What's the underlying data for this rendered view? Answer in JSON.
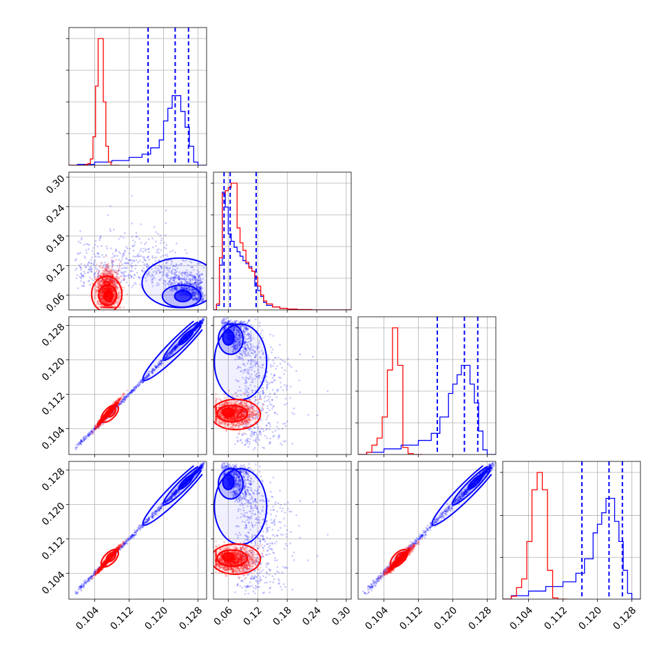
{
  "chart_data": {
    "type": "corner",
    "grid": true,
    "colors": {
      "red": "#ff0000",
      "blue": "#0000ff"
    },
    "parameters": [
      {
        "range": [
          0.098,
          0.13
        ],
        "ticks": [
          0.104,
          0.112,
          0.12,
          0.128
        ],
        "tick_labels": [
          "0.104",
          "0.112",
          "0.120",
          "0.128"
        ]
      },
      {
        "range": [
          0.03,
          0.31
        ],
        "ticks": [
          0.06,
          0.12,
          0.18,
          0.24,
          0.3
        ],
        "tick_labels": [
          "0.06",
          "0.12",
          "0.18",
          "0.24",
          "0.30"
        ]
      },
      {
        "range": [
          0.098,
          0.13
        ],
        "ticks": [
          0.104,
          0.112,
          0.12,
          0.128
        ],
        "tick_labels": [
          "0.104",
          "0.112",
          "0.120",
          "0.128"
        ]
      },
      {
        "range": [
          0.098,
          0.13
        ],
        "ticks": [
          0.104,
          0.112,
          0.12,
          0.128
        ],
        "tick_labels": [
          "0.104",
          "0.112",
          "0.120",
          "0.128"
        ]
      }
    ],
    "histograms": [
      {
        "red": {
          "edges": [
            0.098,
            0.1018,
            0.1024,
            0.103,
            0.1036,
            0.1042,
            0.1048,
            0.1054,
            0.106,
            0.1066,
            0.1072,
            0.1078,
            0.1098
          ],
          "counts": [
            0,
            0.2,
            0.5,
            2,
            9,
            25,
            40,
            40,
            20,
            6,
            1,
            0
          ]
        },
        "blue": {
          "edges": [
            0.098,
            0.1,
            0.104,
            0.108,
            0.112,
            0.115,
            0.117,
            0.119,
            0.12,
            0.121,
            0.122,
            0.123,
            0.124,
            0.125,
            0.126,
            0.127,
            0.128,
            0.13
          ],
          "counts": [
            0,
            0.3,
            1.0,
            1.5,
            2.5,
            3.5,
            5.5,
            8,
            14,
            18,
            22,
            22,
            17,
            12,
            6,
            1,
            0
          ]
        },
        "quantiles": [
          0.1164,
          0.1227,
          0.1258
        ]
      },
      {
        "red": {
          "edges": [
            0.03,
            0.036,
            0.042,
            0.048,
            0.054,
            0.06,
            0.066,
            0.072,
            0.078,
            0.084,
            0.09,
            0.096,
            0.102,
            0.108,
            0.114,
            0.12,
            0.126,
            0.132,
            0.138,
            0.15,
            0.165,
            0.18,
            0.2,
            0.23,
            0.31
          ],
          "counts": [
            0,
            4,
            35,
            78,
            80,
            82,
            85,
            85,
            55,
            45,
            40,
            32,
            28,
            26,
            22,
            16,
            10,
            6,
            4,
            2,
            1,
            0.5,
            0.2,
            0
          ]
        },
        "blue": {
          "edges": [
            0.03,
            0.036,
            0.042,
            0.048,
            0.054,
            0.06,
            0.066,
            0.072,
            0.078,
            0.084,
            0.09,
            0.096,
            0.102,
            0.108,
            0.114,
            0.12,
            0.126,
            0.132,
            0.138,
            0.15,
            0.165,
            0.18,
            0.2,
            0.23,
            0.31
          ],
          "counts": [
            0,
            3,
            30,
            79,
            69,
            51,
            46,
            42,
            39,
            36,
            33,
            31,
            29,
            26,
            16,
            13,
            9,
            5,
            3,
            2,
            1,
            0.5,
            0.2,
            0
          ]
        },
        "quantiles": [
          0.0515,
          0.0639,
          0.1167
        ]
      },
      {
        "red": {
          "edges": [
            0.098,
            0.1,
            0.1012,
            0.1024,
            0.1036,
            0.1048,
            0.106,
            0.1072,
            0.1084,
            0.1096,
            0.1108,
            0.113
          ],
          "counts": [
            0,
            0.5,
            2,
            3.5,
            8,
            18,
            27,
            19,
            1.5,
            0.2,
            0
          ]
        },
        "blue": {
          "edges": [
            0.098,
            0.1,
            0.104,
            0.108,
            0.112,
            0.115,
            0.117,
            0.119,
            0.12,
            0.121,
            0.122,
            0.123,
            0.124,
            0.125,
            0.126,
            0.127,
            0.128,
            0.13
          ],
          "counts": [
            0,
            0.5,
            1.2,
            2,
            3,
            4.5,
            8,
            13,
            15,
            17,
            19,
            19,
            15,
            11,
            5,
            1,
            0
          ]
        },
        "quantiles": [
          0.1164,
          0.1227,
          0.1258
        ]
      },
      {
        "red": {
          "edges": [
            0.098,
            0.1,
            0.1012,
            0.1024,
            0.1036,
            0.1048,
            0.106,
            0.1072,
            0.1084,
            0.1096,
            0.1108,
            0.113
          ],
          "counts": [
            0,
            0.5,
            2,
            3.5,
            10,
            19,
            22,
            19,
            5,
            0.2,
            0
          ]
        },
        "blue": {
          "edges": [
            0.098,
            0.1,
            0.104,
            0.108,
            0.112,
            0.115,
            0.117,
            0.119,
            0.12,
            0.121,
            0.122,
            0.123,
            0.124,
            0.125,
            0.126,
            0.127,
            0.128,
            0.13
          ],
          "counts": [
            0,
            0.6,
            1.4,
            2.2,
            3,
            4.5,
            7,
            11.5,
            13,
            15,
            17.5,
            17.5,
            13.5,
            10,
            5,
            1,
            0
          ]
        },
        "quantiles": [
          0.1164,
          0.1227,
          0.1258
        ]
      }
    ],
    "hist_y_ticks": [
      [
        0.25,
        0.5,
        0.75,
        1.0
      ],
      [
        0.25,
        0.5,
        0.75,
        1.0
      ],
      [
        0.25,
        0.5,
        0.75,
        1.0
      ],
      [
        0.33,
        0.66,
        1.0
      ]
    ],
    "red_population": {
      "mean": [
        0.107,
        0.06,
        0.1075,
        0.107
      ],
      "sd": [
        0.0012,
        0.02,
        0.0014,
        0.0014
      ],
      "corr_01": 0.0,
      "corr_23": 0.97
    },
    "blue_population": {
      "low_end": [
        0.1,
        0.11
      ],
      "high_end": [
        0.129,
        0.12
      ],
      "core_center": [
        0.1245,
        0.058
      ]
    }
  }
}
